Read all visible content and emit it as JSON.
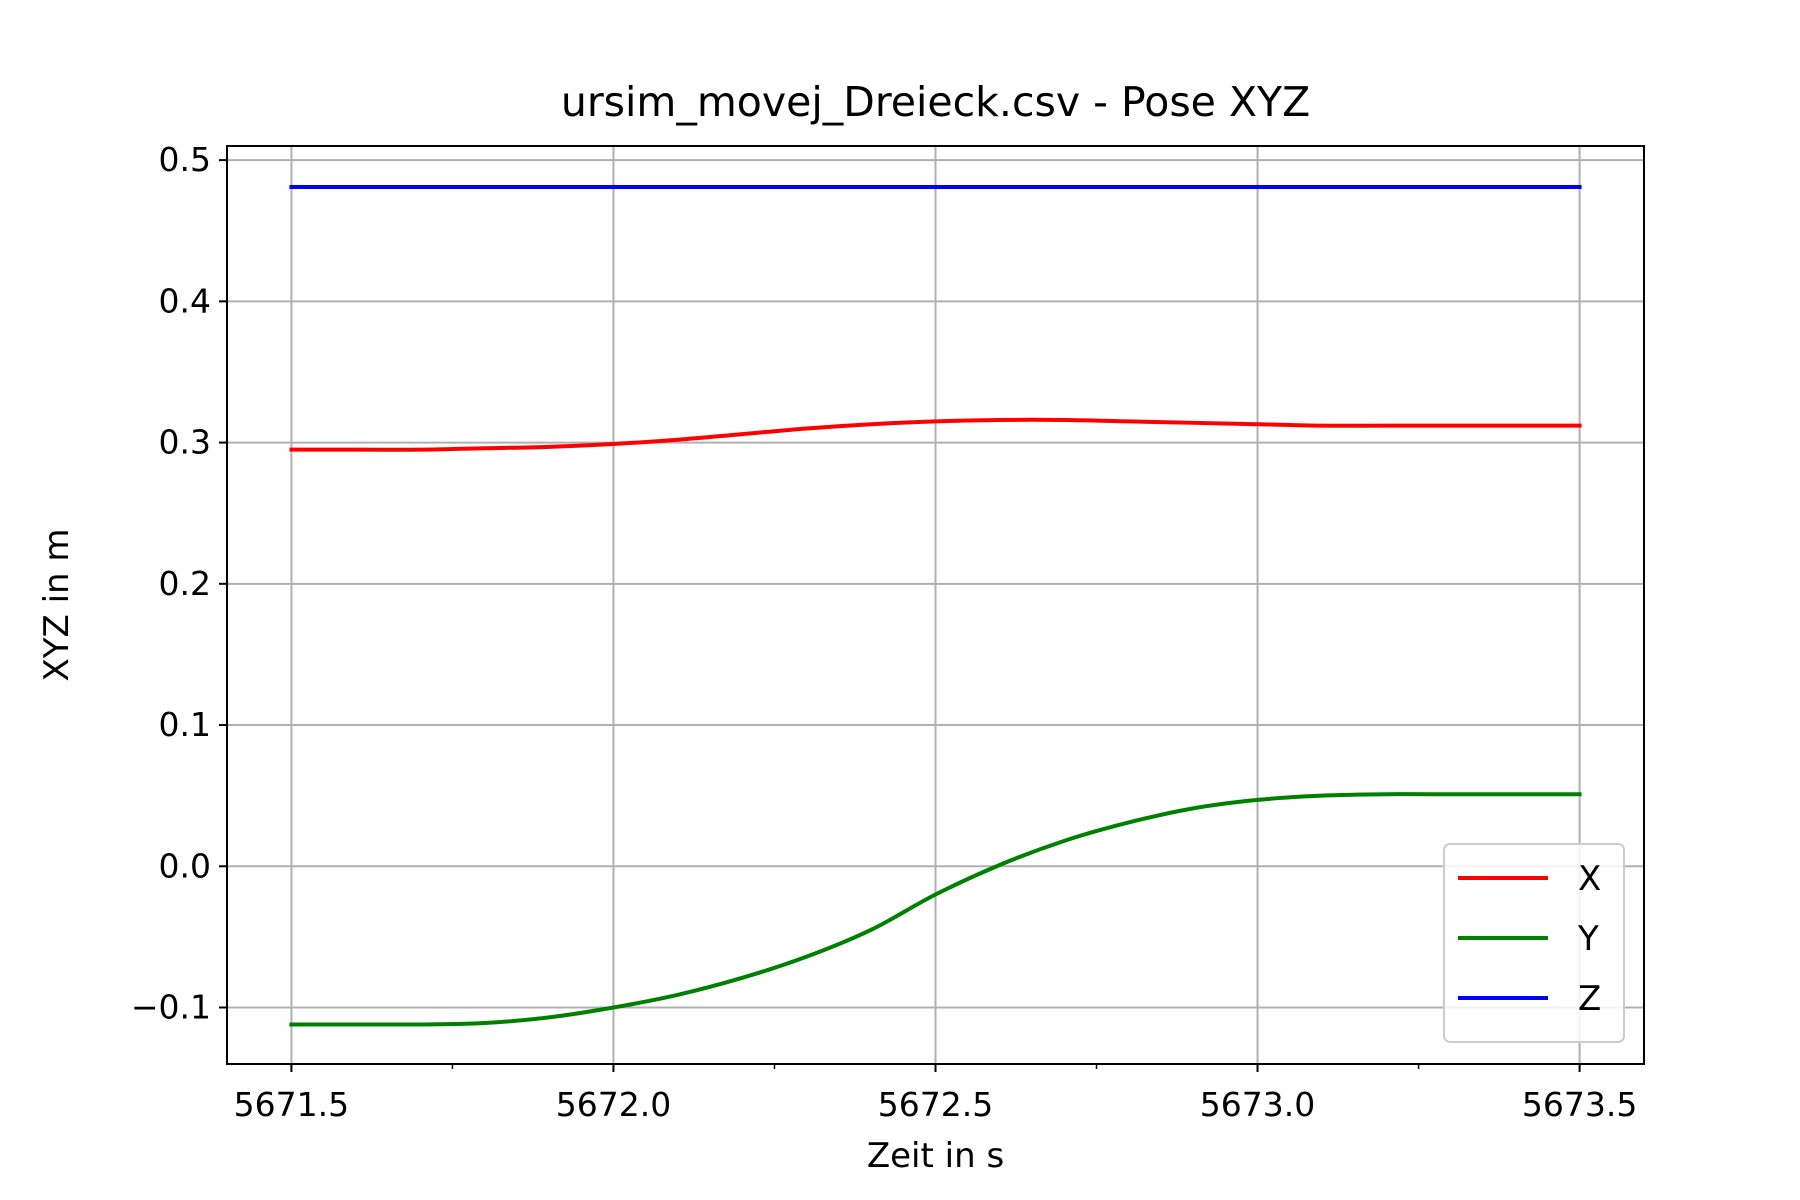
{
  "chart_data": {
    "type": "line",
    "title": "ursim_movej_Dreieck.csv - Pose XYZ",
    "xlabel": "Zeit in s",
    "ylabel": "XYZ in m",
    "xlim": [
      5671.4,
      5673.6
    ],
    "ylim": [
      -0.14,
      0.51
    ],
    "xticks": [
      5671.5,
      5672.0,
      5672.5,
      5673.0,
      5673.5
    ],
    "xtick_labels": [
      "5671.5",
      "5672.0",
      "5672.5",
      "5673.0",
      "5673.5"
    ],
    "yticks": [
      -0.1,
      0.0,
      0.1,
      0.2,
      0.3,
      0.4,
      0.5
    ],
    "ytick_labels": [
      "−0.1",
      "0.0",
      "0.1",
      "0.2",
      "0.3",
      "0.4",
      "0.5"
    ],
    "xminor": [
      5671.75,
      5672.25,
      5672.75,
      5673.25
    ],
    "grid": true,
    "legend_position": "lower-right",
    "series": [
      {
        "name": "X",
        "color": "#ff0000",
        "x": [
          5671.5,
          5671.6,
          5671.7,
          5671.8,
          5671.9,
          5672.0,
          5672.1,
          5672.2,
          5672.3,
          5672.4,
          5672.5,
          5672.6,
          5672.7,
          5672.8,
          5672.9,
          5673.0,
          5673.1,
          5673.2,
          5673.3,
          5673.4,
          5673.5
        ],
        "values": [
          0.295,
          0.295,
          0.295,
          0.296,
          0.297,
          0.299,
          0.302,
          0.306,
          0.31,
          0.313,
          0.315,
          0.316,
          0.316,
          0.315,
          0.314,
          0.313,
          0.312,
          0.312,
          0.312,
          0.312,
          0.312
        ]
      },
      {
        "name": "Y",
        "color": "#008000",
        "x": [
          5671.5,
          5671.6,
          5671.7,
          5671.8,
          5671.9,
          5672.0,
          5672.1,
          5672.2,
          5672.3,
          5672.4,
          5672.5,
          5672.6,
          5672.7,
          5672.8,
          5672.9,
          5673.0,
          5673.1,
          5673.2,
          5673.3,
          5673.4,
          5673.5
        ],
        "values": [
          -0.112,
          -0.112,
          -0.112,
          -0.111,
          -0.107,
          -0.1,
          -0.091,
          -0.079,
          -0.064,
          -0.045,
          -0.02,
          0.001,
          0.018,
          0.031,
          0.041,
          0.047,
          0.05,
          0.051,
          0.051,
          0.051,
          0.051
        ]
      },
      {
        "name": "Z",
        "color": "#0000ff",
        "x": [
          5671.5,
          5673.5
        ],
        "values": [
          0.481,
          0.481
        ]
      }
    ]
  }
}
